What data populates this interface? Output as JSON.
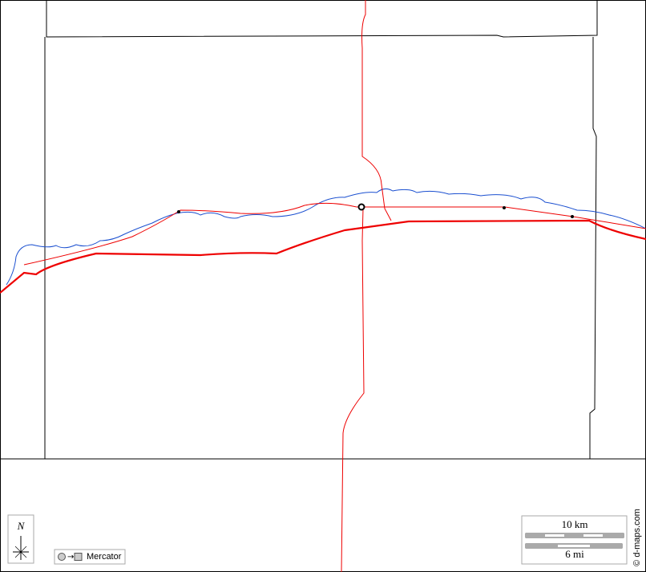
{
  "map": {
    "north": "N",
    "projection": "Mercator",
    "scale_km": "10 km",
    "scale_mi": "6 mi",
    "credit": "© d-maps.com"
  }
}
